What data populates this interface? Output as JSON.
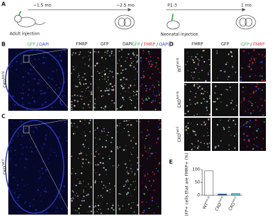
{
  "panel_labels": [
    "A",
    "B",
    "C",
    "D",
    "E"
  ],
  "timeline": {
    "adult_start": "~1.5 mo",
    "adult_end": "~2.5 mo",
    "adult_caption": "Adult injection",
    "neonatal_start": "P1-3",
    "neonatal_end": "1 mo",
    "neonatal_caption": "Neonatal injection"
  },
  "overview_label": [
    "GFP",
    "/",
    "DAPI"
  ],
  "strip_headers": [
    "FMRP",
    "GFP",
    "DAPI"
  ],
  "strip_merge_label": [
    "GFP",
    "/",
    "FMRP",
    "/",
    "DAPI"
  ],
  "panel_b_genotype": {
    "base": "CKO",
    "sup": "het-N"
  },
  "panel_c_genotype": {
    "base": "CKO",
    "sup": "het-F"
  },
  "panel_d": {
    "headers": [
      "FMRP",
      "GFP"
    ],
    "merge_label": [
      "GFP",
      "/",
      "FMRP"
    ],
    "rows": [
      {
        "base": "WT",
        "sup": "het-N"
      },
      {
        "base": "CKO",
        "sup": "het-N"
      },
      {
        "base": "CKO",
        "sup": "het-F"
      }
    ]
  },
  "chart_data": {
    "type": "bar",
    "y_label": "GFP+ cells that are FMRP+ (%)",
    "categories": [
      "WT",
      "CKO",
      "CKO"
    ],
    "category_superscripts": [
      "het-N",
      "het-N",
      "het-F"
    ],
    "values": [
      95,
      5,
      6
    ],
    "colors": [
      "#ffffff",
      "#3a6fb0",
      "#5ec8d8"
    ],
    "ylim": [
      0,
      100
    ],
    "yticks": [
      0,
      50,
      100
    ]
  }
}
